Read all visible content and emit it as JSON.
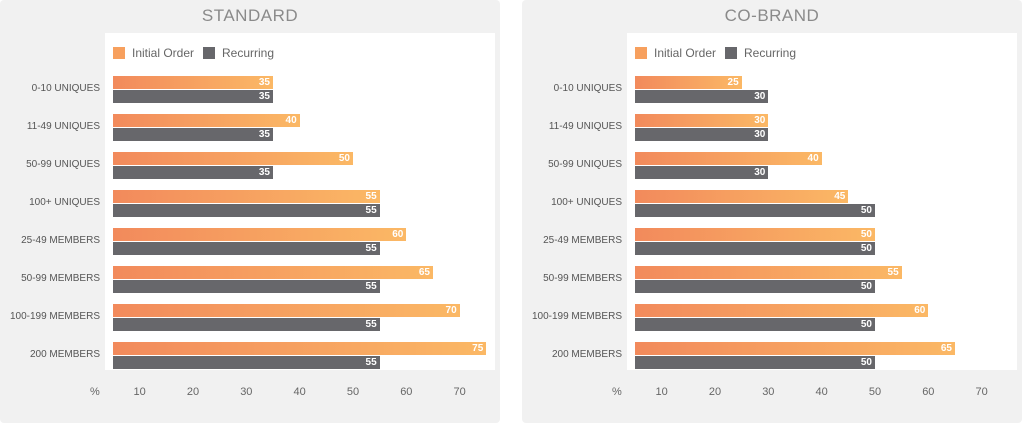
{
  "chart_data": [
    {
      "type": "bar",
      "orientation": "horizontal",
      "title": "STANDARD",
      "categories": [
        "0-10 UNIQUES",
        "11-49 UNIQUES",
        "50-99 UNIQUES",
        "100+ UNIQUES",
        "25-49 MEMBERS",
        "50-99 MEMBERS",
        "100-199 MEMBERS",
        "200 MEMBERS"
      ],
      "series": [
        {
          "name": "Initial Order",
          "values": [
            35,
            40,
            50,
            55,
            60,
            65,
            70,
            75
          ],
          "color": "#f7a05e"
        },
        {
          "name": "Recurring",
          "values": [
            35,
            35,
            35,
            55,
            55,
            55,
            55,
            55
          ],
          "color": "#67676b"
        }
      ],
      "x_unit": "%",
      "x_ticks": [
        10,
        20,
        30,
        40,
        50,
        60,
        70
      ],
      "xlim": [
        5,
        75
      ],
      "legend": "top-left"
    },
    {
      "type": "bar",
      "orientation": "horizontal",
      "title": "CO-BRAND",
      "categories": [
        "0-10 UNIQUES",
        "11-49 UNIQUES",
        "50-99 UNIQUES",
        "100+ UNIQUES",
        "25-49 MEMBERS",
        "50-99 MEMBERS",
        "100-199 MEMBERS",
        "200 MEMBERS"
      ],
      "series": [
        {
          "name": "Initial Order",
          "values": [
            25,
            30,
            40,
            45,
            50,
            55,
            60,
            65
          ],
          "color": "#f7a05e"
        },
        {
          "name": "Recurring",
          "values": [
            30,
            30,
            30,
            50,
            50,
            50,
            50,
            50
          ],
          "color": "#67676b"
        }
      ],
      "x_unit": "%",
      "x_ticks": [
        10,
        20,
        30,
        40,
        50,
        60,
        70
      ],
      "xlim": [
        5,
        75
      ],
      "legend": "top-left"
    }
  ]
}
